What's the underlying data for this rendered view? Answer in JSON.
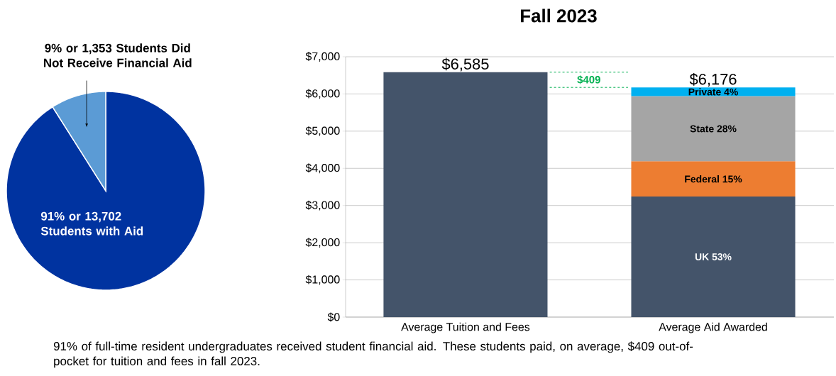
{
  "chart_data": [
    {
      "type": "pie",
      "categories": [
        "91% or 13,702 Students with Aid",
        "9% or 1,353 Students Did Not Receive Financial Aid"
      ],
      "values": [
        13702,
        1353
      ],
      "colors": [
        "#0033a0",
        "#5b9bd5"
      ]
    },
    {
      "type": "bar",
      "title": "Fall 2023",
      "stacked": true,
      "categories": [
        "Average Tuition and Fees",
        "Average Aid Awarded"
      ],
      "series": [
        {
          "color": "#44546a",
          "values": [
            6585,
            null
          ]
        },
        {
          "name": "UK  53%",
          "color": "#44546a",
          "values": [
            null,
            3240
          ]
        },
        {
          "name": "Federal 15%",
          "color": "#ed7d31",
          "values": [
            null,
            950
          ]
        },
        {
          "name": "State 28%",
          "color": "#a5a5a5",
          "values": [
            null,
            1750
          ]
        },
        {
          "name": "Private 4%",
          "color": "#00b0f0",
          "values": [
            null,
            236
          ]
        }
      ],
      "ylim": [
        0,
        7000
      ],
      "yticks": [
        {
          "value": 0,
          "label": "$0"
        },
        {
          "value": 1000,
          "label": "$1,000"
        },
        {
          "value": 2000,
          "label": "$2,000"
        },
        {
          "value": 3000,
          "label": "$3,000"
        },
        {
          "value": 4000,
          "label": "$4,000"
        },
        {
          "value": 5000,
          "label": "$5,000"
        },
        {
          "value": 6000,
          "label": "$6,000"
        },
        {
          "value": 7000,
          "label": "$7,000"
        }
      ],
      "grid": "y",
      "totals": [
        "$6,585",
        "$6,176"
      ],
      "ref_lines": [
        {
          "axis": "y",
          "value": 6585,
          "color": "#00b050",
          "line_style": "dashed"
        },
        {
          "axis": "y",
          "value": 6176,
          "color": "#00b050",
          "line_style": "dashed"
        }
      ],
      "annotations": [
        "$409",
        "91% of full-time resident undergraduates received student financial aid. These students paid, on average, $409 out-of-pocket for tuition and fees in fall 2023."
      ]
    }
  ]
}
